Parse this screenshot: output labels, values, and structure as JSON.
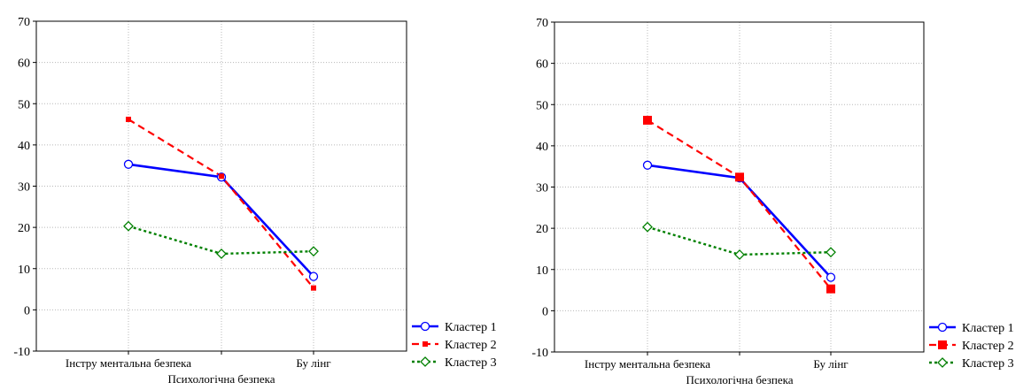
{
  "chart_data": [
    {
      "type": "line",
      "xlabel": "Психологічна безпека",
      "ylabel": "",
      "categories": [
        "Інструментальна безпека",
        "",
        "Булінг"
      ],
      "x_tick_labels": [
        "Інстру ментальна безпека",
        "Бу лінг"
      ],
      "ylim": [
        -10,
        70
      ],
      "y_ticks": [
        "70",
        "60",
        "50",
        "40",
        "30",
        "20",
        "10",
        "0",
        "-10"
      ],
      "grid": true,
      "legend_position": "bottom-right",
      "series": [
        {
          "name": "Кластер  1",
          "values": [
            35.3,
            32.2,
            8.1
          ],
          "color": "#0000ff",
          "style": "solid",
          "marker": "circle-open"
        },
        {
          "name": "Кластер  2",
          "values": [
            46.2,
            32.4,
            5.3
          ],
          "color": "#ff0000",
          "style": "dashed",
          "marker": "square-small"
        },
        {
          "name": "Кластер  3",
          "values": [
            20.3,
            13.6,
            14.2
          ],
          "color": "#008000",
          "style": "dotted",
          "marker": "diamond-open"
        }
      ]
    },
    {
      "type": "line",
      "xlabel": "Психологічна безпека",
      "ylabel": "",
      "categories": [
        "Інструментальна безпека",
        "",
        "Булінг"
      ],
      "x_tick_labels": [
        "Інстру ментальна безпека",
        "Бу лінг"
      ],
      "ylim": [
        -10,
        70
      ],
      "y_ticks": [
        "70",
        "60",
        "50",
        "40",
        "30",
        "20",
        "10",
        "0",
        "-10"
      ],
      "grid": true,
      "legend_position": "bottom-right",
      "series": [
        {
          "name": "Кластер  1",
          "values": [
            35.3,
            32.2,
            8.1
          ],
          "color": "#0000ff",
          "style": "solid",
          "marker": "circle-open"
        },
        {
          "name": "Кластер  2",
          "values": [
            46.2,
            32.4,
            5.3
          ],
          "color": "#ff0000",
          "style": "dashed",
          "marker": "square-large"
        },
        {
          "name": "Кластер  3",
          "values": [
            20.3,
            13.6,
            14.2
          ],
          "color": "#008000",
          "style": "dotted",
          "marker": "diamond-open"
        }
      ]
    }
  ]
}
